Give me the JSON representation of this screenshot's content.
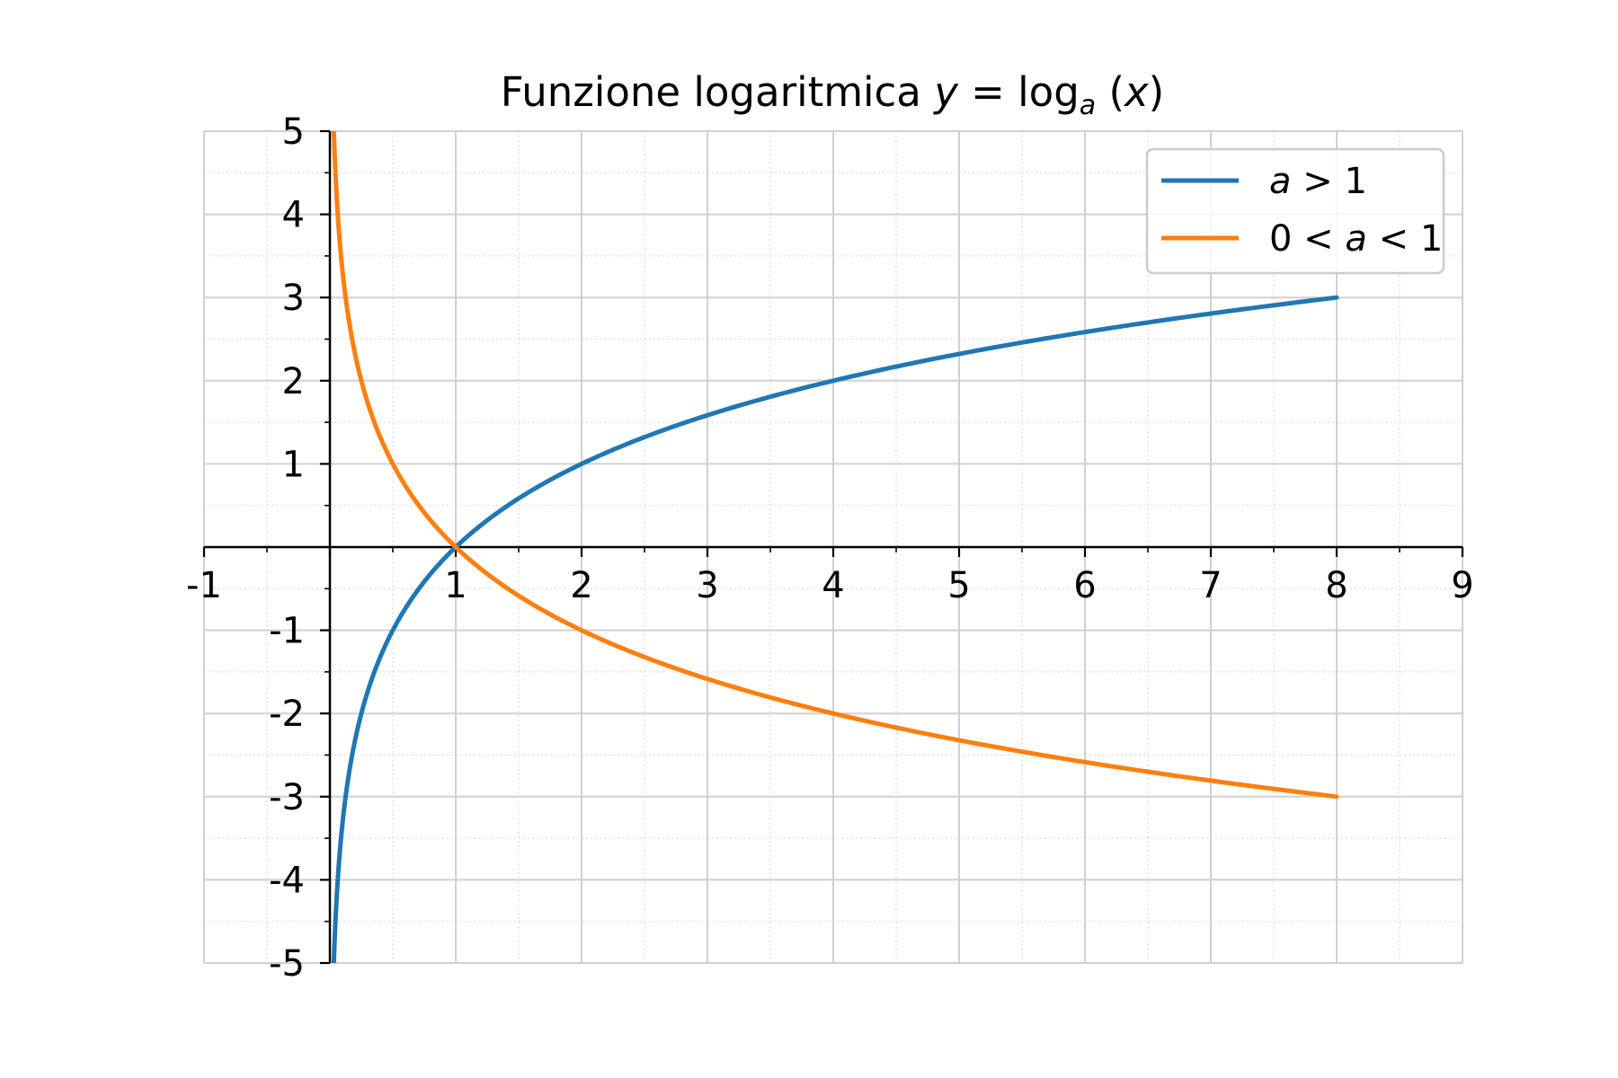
{
  "chart_data": {
    "type": "line",
    "title": {
      "prefix": "Funzione logaritmica ",
      "y": "y",
      "equals": " = ",
      "log": "log",
      "base": "a",
      "open": " (",
      "x": "x",
      "close": ")"
    },
    "xlim": [
      -1,
      9
    ],
    "ylim": [
      -5,
      5
    ],
    "x_ticks": [
      -1,
      1,
      2,
      3,
      4,
      5,
      6,
      7,
      8,
      9
    ],
    "y_ticks": [
      -5,
      -4,
      -3,
      -2,
      -1,
      1,
      2,
      3,
      4,
      5
    ],
    "grid": true,
    "minor_grid": true,
    "legend_position": "top-right",
    "series": [
      {
        "name": "a > 1",
        "legend": {
          "pre": "",
          "var": "a",
          "post": " > 1"
        },
        "function": "log2(x)",
        "base": 2,
        "x_range": [
          0.03125,
          8
        ],
        "color": "#1f77b4"
      },
      {
        "name": "0 < a < 1",
        "legend": {
          "pre": "0 < ",
          "var": "a",
          "post": " < 1"
        },
        "function": "log0.5(x)",
        "base": 0.5,
        "x_range": [
          0.03125,
          8
        ],
        "color": "#ff7f0e"
      }
    ],
    "colors": {
      "grid_major": "#d0d0d0",
      "grid_minor": "#dddddd",
      "axis": "#000000"
    }
  }
}
